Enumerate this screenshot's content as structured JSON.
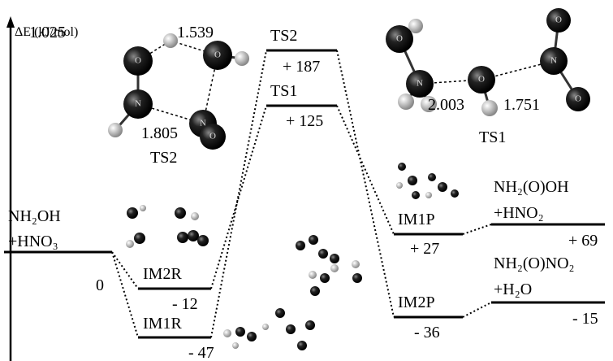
{
  "axis_label": "ΔE (kJ/mol)",
  "levels": [
    {
      "species": [
        "NH₂OH",
        "+HNO₃"
      ],
      "energy": "0"
    },
    {
      "label": "IM2R",
      "energy": "- 12"
    },
    {
      "label": "IM1R",
      "energy": "- 47"
    },
    {
      "label": "TS2",
      "energy": "+ 187"
    },
    {
      "label": "TS1",
      "energy": "+ 125"
    },
    {
      "label": "IM1P",
      "energy": "+ 27"
    },
    {
      "label": "IM2P",
      "energy": "- 36"
    },
    {
      "species": [
        "NH₂(O)OH",
        "+HNO₂"
      ],
      "energy": "+ 69"
    },
    {
      "species": [
        "NH₂(O)NO₂",
        "+H₂O"
      ],
      "energy": "- 15"
    }
  ],
  "geometries": [
    {
      "name": "TS2",
      "distances": [
        "1.025",
        "1.539",
        "1.805"
      ],
      "atoms": [
        "O",
        "O",
        "N",
        "N",
        "O"
      ]
    },
    {
      "name": "TS1",
      "distances": [
        "2.003",
        "1.751"
      ],
      "atoms": [
        "O",
        "N",
        "O",
        "N",
        "O",
        "O"
      ]
    }
  ]
}
